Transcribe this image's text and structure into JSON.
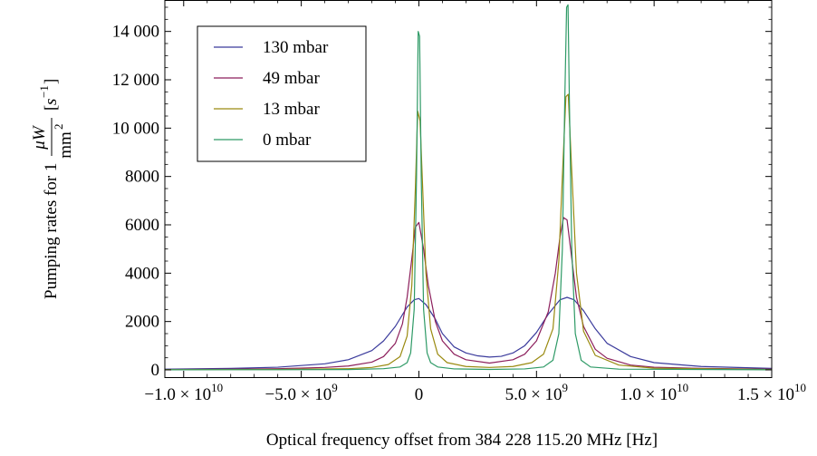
{
  "chart_data": {
    "type": "line",
    "xlabel": "Optical frequency offset from 384 228 115.20 MHz [Hz]",
    "ylabel_prefix": "Pumping rates for 1",
    "ylabel_unit_num": "μW",
    "ylabel_unit_den_base": "mm",
    "ylabel_unit_den_exp": "2",
    "ylabel_bracket_open": "[",
    "ylabel_bracket_s": "s",
    "ylabel_bracket_exp": "−1",
    "ylabel_bracket_close": "]",
    "xlim": [
      -10800000000.0,
      15000000000.0
    ],
    "ylim": [
      -300,
      15300
    ],
    "x_ticks": [
      {
        "value": -10000000000.0,
        "mantissa": "−1.0",
        "exp": "10"
      },
      {
        "value": -5000000000.0,
        "mantissa": "−5.0",
        "exp": "9"
      },
      {
        "value": 0,
        "label": "0"
      },
      {
        "value": 5000000000.0,
        "mantissa": "5.0",
        "exp": "9"
      },
      {
        "value": 10000000000.0,
        "mantissa": "1.0",
        "exp": "10"
      },
      {
        "value": 15000000000.0,
        "mantissa": "1.5",
        "exp": "10"
      }
    ],
    "times_symbol": "×",
    "ten": "10",
    "y_ticks": [
      {
        "value": 0,
        "label": "0"
      },
      {
        "value": 2000,
        "label": "2000"
      },
      {
        "value": 4000,
        "label": "4000"
      },
      {
        "value": 6000,
        "label": "6000"
      },
      {
        "value": 8000,
        "label": "8000"
      },
      {
        "value": 10000,
        "label": "10 000"
      },
      {
        "value": 12000,
        "label": "12 000"
      },
      {
        "value": 14000,
        "label": "14 000"
      }
    ],
    "legend_position": "top-left",
    "grid": false,
    "series": [
      {
        "name": "130 mbar",
        "color": "#3b3b9c",
        "x": [
          -10800000000.0,
          -8000000000.0,
          -6000000000.0,
          -4000000000.0,
          -3000000000.0,
          -2000000000.0,
          -1500000000.0,
          -1000000000.0,
          -500000000.0,
          -200000000.0,
          0,
          300000000.0,
          700000000.0,
          1000000000.0,
          1500000000.0,
          2000000000.0,
          2500000000.0,
          3000000000.0,
          3500000000.0,
          4000000000.0,
          4500000000.0,
          5000000000.0,
          5500000000.0,
          6000000000.0,
          6300000000.0,
          6600000000.0,
          7000000000.0,
          7500000000.0,
          8000000000.0,
          9000000000.0,
          10000000000.0,
          12000000000.0,
          15000000000.0
        ],
        "values": [
          30,
          60,
          110,
          250,
          420,
          800,
          1200,
          1800,
          2600,
          2900,
          2950,
          2700,
          2100,
          1500,
          950,
          700,
          580,
          530,
          560,
          700,
          1000,
          1550,
          2300,
          2900,
          3000,
          2900,
          2450,
          1700,
          1100,
          550,
          300,
          140,
          60
        ]
      },
      {
        "name": "49 mbar",
        "color": "#8c1f5c",
        "x": [
          -10800000000.0,
          -8000000000.0,
          -6000000000.0,
          -4000000000.0,
          -3000000000.0,
          -2000000000.0,
          -1500000000.0,
          -1000000000.0,
          -700000000.0,
          -500000000.0,
          -300000000.0,
          -150000000.0,
          0,
          200000000.0,
          400000000.0,
          700000000.0,
          1000000000.0,
          1500000000.0,
          2000000000.0,
          3000000000.0,
          4000000000.0,
          4500000000.0,
          5000000000.0,
          5500000000.0,
          5800000000.0,
          6000000000.0,
          6150000000.0,
          6300000000.0,
          6450000000.0,
          6700000000.0,
          7000000000.0,
          7500000000.0,
          8000000000.0,
          9000000000.0,
          10000000000.0,
          12000000000.0,
          15000000000.0
        ],
        "values": [
          15,
          30,
          50,
          100,
          160,
          320,
          550,
          1100,
          1900,
          3000,
          4600,
          5900,
          6100,
          5000,
          3500,
          2000,
          1200,
          650,
          420,
          280,
          420,
          650,
          1200,
          2400,
          4000,
          5500,
          6300,
          6200,
          5000,
          3000,
          1800,
          850,
          480,
          200,
          110,
          60,
          30
        ]
      },
      {
        "name": "13 mbar",
        "color": "#9a8a10",
        "x": [
          -10800000000.0,
          -6000000000.0,
          -3000000000.0,
          -2000000000.0,
          -1300000000.0,
          -800000000.0,
          -500000000.0,
          -300000000.0,
          -150000000.0,
          -50000000.0,
          50000000.0,
          150000000.0,
          300000000.0,
          500000000.0,
          800000000.0,
          1200000000.0,
          2000000000.0,
          3000000000.0,
          4000000000.0,
          4800000000.0,
          5300000000.0,
          5700000000.0,
          5950000000.0,
          6100000000.0,
          6250000000.0,
          6350000000.0,
          6500000000.0,
          6700000000.0,
          7000000000.0,
          7500000000.0,
          8500000000.0,
          10000000000.0,
          15000000000.0
        ],
        "values": [
          10,
          20,
          50,
          100,
          220,
          550,
          1400,
          3500,
          7500,
          10700,
          10300,
          7800,
          4000,
          1700,
          650,
          300,
          140,
          100,
          140,
          300,
          650,
          1700,
          4500,
          8000,
          11300,
          11400,
          8200,
          4000,
          1600,
          600,
          200,
          70,
          15
        ]
      },
      {
        "name": "0 mbar",
        "color": "#2e9a66",
        "x": [
          -10800000000.0,
          -6000000000.0,
          -3000000000.0,
          -1500000000.0,
          -800000000.0,
          -500000000.0,
          -350000000.0,
          -200000000.0,
          -100000000.0,
          -30000000.0,
          30000000.0,
          100000000.0,
          200000000.0,
          350000000.0,
          500000000.0,
          800000000.0,
          1500000000.0,
          3000000000.0,
          4500000000.0,
          5300000000.0,
          5700000000.0,
          5950000000.0,
          6100000000.0,
          6200000000.0,
          6280000000.0,
          6340000000.0,
          6400000000.0,
          6500000000.0,
          6650000000.0,
          6900000000.0,
          7300000000.0,
          8500000000.0,
          15000000000.0
        ],
        "values": [
          5,
          8,
          15,
          50,
          120,
          300,
          700,
          2500,
          8000,
          14000,
          13800,
          8000,
          2500,
          700,
          300,
          120,
          40,
          20,
          40,
          120,
          400,
          1500,
          5000,
          11000,
          15000,
          15100,
          11000,
          5000,
          1500,
          400,
          120,
          30,
          5
        ]
      }
    ]
  }
}
